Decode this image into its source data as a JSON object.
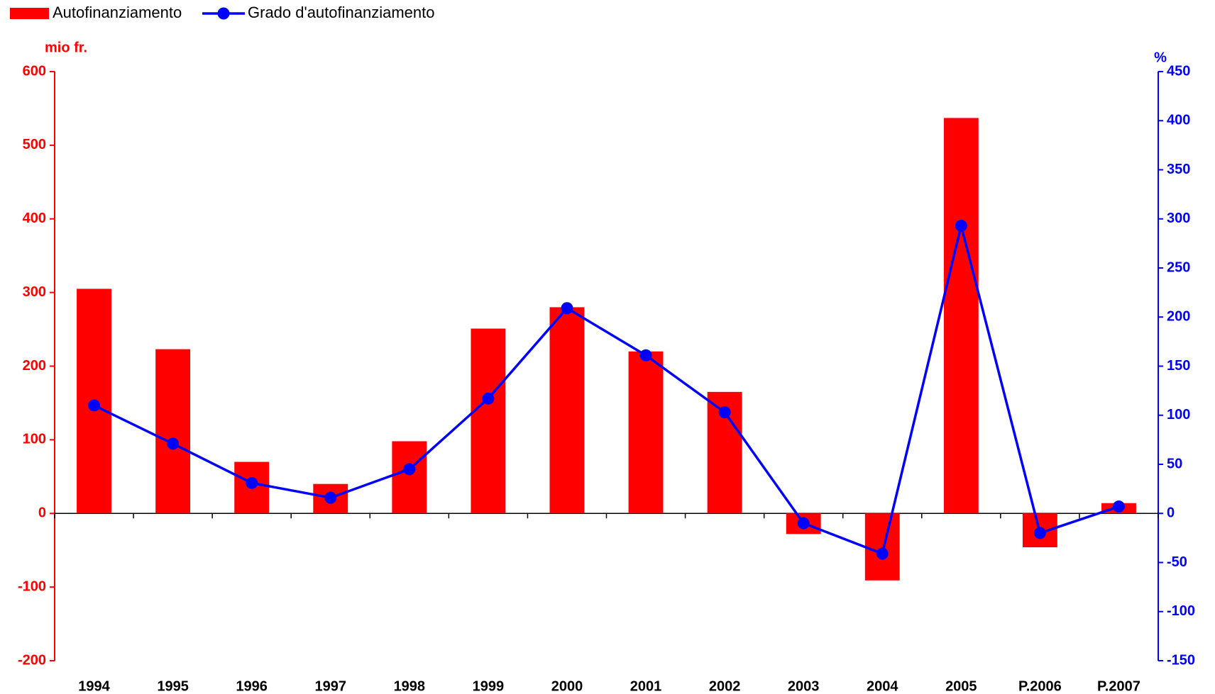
{
  "chart_data": {
    "type": "bar",
    "y_label": "mio fr.",
    "y2_label": "%",
    "categories": [
      "1994",
      "1995",
      "1996",
      "1997",
      "1998",
      "1999",
      "2000",
      "2001",
      "2002",
      "2003",
      "2004",
      "2005",
      "P.2006",
      "P.2007"
    ],
    "series": [
      {
        "name": "Autofinanziamento",
        "type": "bar",
        "color": "#ff0000",
        "values": [
          305,
          223,
          70,
          40,
          98,
          251,
          280,
          220,
          165,
          -28,
          -91,
          537,
          -46,
          14
        ]
      },
      {
        "name": "Grado d'autofinanziamento",
        "type": "line",
        "axis": "y2",
        "color": "#0000ff",
        "values": [
          110,
          71,
          31,
          16,
          45,
          117,
          209,
          161,
          103,
          -10,
          -41,
          293,
          -20,
          7
        ]
      }
    ],
    "ylim": [
      -200,
      600
    ],
    "yticks": [
      -200,
      -100,
      0,
      100,
      200,
      300,
      400,
      500,
      600
    ],
    "y2lim": [
      -150,
      450
    ],
    "y2ticks": [
      -150,
      -100,
      -50,
      0,
      50,
      100,
      150,
      200,
      250,
      300,
      350,
      400,
      450
    ]
  }
}
